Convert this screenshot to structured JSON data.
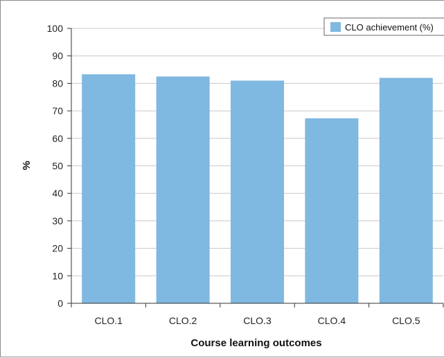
{
  "chart_data": {
    "type": "bar",
    "categories": [
      "CLO.1",
      "CLO.2",
      "CLO.3",
      "CLO.4",
      "CLO.5"
    ],
    "series": [
      {
        "name": "CLO achievement (%)",
        "values": [
          83.3,
          82.5,
          81.0,
          67.3,
          82.0
        ]
      }
    ],
    "xlabel": "Course learning outcomes",
    "ylabel": "%",
    "ylim": [
      0,
      100
    ],
    "yticks": [
      0,
      10,
      20,
      30,
      40,
      50,
      60,
      70,
      80,
      90,
      100
    ],
    "grid": true,
    "legend": "top-right",
    "colors": {
      "bar": "#7fb8e0",
      "grid": "#c8c8c8",
      "axis": "#333333"
    }
  }
}
